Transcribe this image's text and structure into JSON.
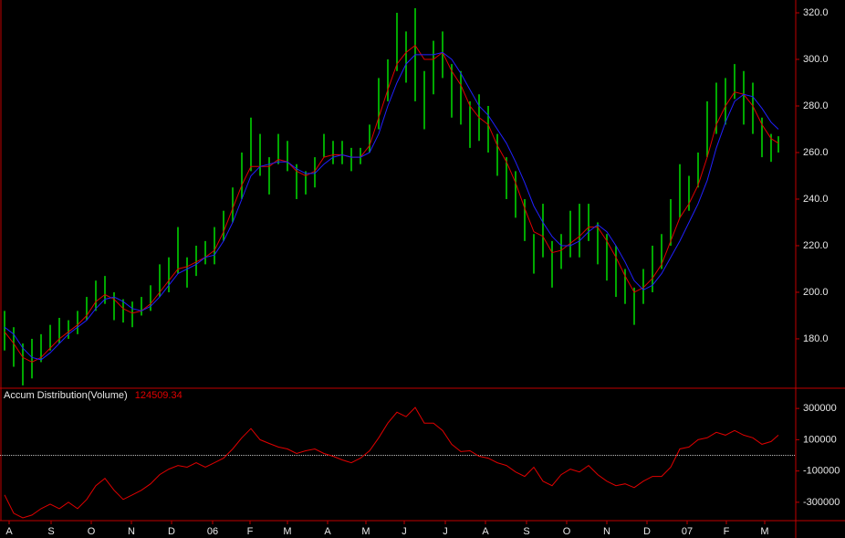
{
  "chart_data": [
    {
      "type": "ohlc",
      "bar_color": "#00e000",
      "x": [
        5,
        15,
        25,
        35,
        45,
        55,
        65,
        75,
        85,
        95,
        105,
        115,
        125,
        135,
        145,
        155,
        165,
        175,
        185,
        195,
        205,
        215,
        225,
        235,
        245,
        255,
        265,
        275,
        285,
        295,
        305,
        315,
        325,
        335,
        345,
        355,
        365,
        375,
        385,
        395,
        405,
        415,
        425,
        435,
        445,
        455,
        465,
        475,
        485,
        495,
        505,
        515,
        525,
        535,
        545,
        555,
        565,
        575,
        585,
        595,
        605,
        615,
        625,
        635,
        645,
        655,
        665,
        675,
        685,
        695,
        705,
        715,
        725,
        735,
        745,
        755,
        765,
        775,
        785,
        795,
        805,
        815,
        825,
        835,
        845,
        853
      ],
      "lows": [
        175,
        168,
        160,
        163,
        170,
        175,
        178,
        180,
        182,
        188,
        192,
        195,
        188,
        187,
        185,
        190,
        192,
        198,
        200,
        208,
        202,
        207,
        212,
        212,
        222,
        230,
        240,
        252,
        250,
        242,
        255,
        252,
        240,
        242,
        245,
        258,
        255,
        255,
        252,
        255,
        260,
        270,
        282,
        295,
        290,
        282,
        270,
        285,
        292,
        275,
        272,
        262,
        265,
        260,
        250,
        240,
        232,
        222,
        208,
        215,
        202,
        210,
        215,
        215,
        222,
        212,
        205,
        198,
        195,
        186,
        195,
        200,
        210,
        220,
        232,
        235,
        245,
        258,
        268,
        272,
        283,
        272,
        268,
        258,
        256,
        260
      ],
      "highs": [
        192,
        185,
        178,
        180,
        182,
        186,
        189,
        188,
        192,
        198,
        205,
        207,
        200,
        197,
        196,
        198,
        203,
        212,
        215,
        228,
        215,
        220,
        222,
        228,
        235,
        245,
        260,
        275,
        268,
        258,
        268,
        265,
        255,
        252,
        258,
        268,
        265,
        265,
        262,
        262,
        272,
        292,
        300,
        320,
        312,
        322,
        295,
        308,
        312,
        298,
        295,
        282,
        285,
        280,
        268,
        258,
        252,
        240,
        225,
        238,
        222,
        225,
        235,
        238,
        238,
        230,
        225,
        220,
        210,
        202,
        210,
        220,
        225,
        240,
        255,
        250,
        260,
        282,
        290,
        292,
        298,
        295,
        290,
        275,
        268,
        267
      ],
      "moving_averages": [
        {
          "color": "#e00000",
          "values": [
            183,
            178,
            172,
            170,
            172,
            176,
            180,
            183,
            186,
            190,
            196,
            199,
            197,
            193,
            191,
            192,
            195,
            200,
            205,
            210,
            211,
            213,
            215,
            218,
            226,
            236,
            246,
            254,
            254,
            254,
            257,
            256,
            252,
            250,
            252,
            258,
            259,
            259,
            258,
            258,
            263,
            275,
            287,
            298,
            303,
            306,
            300,
            300,
            303,
            295,
            289,
            280,
            275,
            272,
            263,
            256,
            247,
            236,
            226,
            224,
            217,
            218,
            221,
            224,
            228,
            228,
            222,
            215,
            207,
            200,
            202,
            206,
            212,
            222,
            232,
            238,
            246,
            258,
            272,
            280,
            286,
            285,
            280,
            272,
            266,
            264
          ]
        },
        {
          "color": "#2020ff",
          "values": [
            185,
            182,
            176,
            172,
            171,
            174,
            178,
            182,
            185,
            188,
            193,
            197,
            198,
            196,
            193,
            192,
            194,
            198,
            203,
            208,
            210,
            212,
            215,
            216,
            222,
            230,
            240,
            250,
            254,
            255,
            256,
            256,
            253,
            251,
            251,
            255,
            258,
            259,
            258,
            258,
            260,
            268,
            280,
            290,
            298,
            302,
            302,
            302,
            303,
            300,
            294,
            287,
            280,
            276,
            270,
            264,
            256,
            247,
            237,
            230,
            224,
            220,
            220,
            222,
            226,
            229,
            226,
            220,
            213,
            205,
            201,
            203,
            208,
            215,
            222,
            230,
            238,
            248,
            262,
            273,
            282,
            285,
            284,
            279,
            273,
            270
          ]
        }
      ],
      "xlim": [
        0,
        872
      ],
      "ylim": [
        158.8,
        325.5
      ],
      "yticks": [
        {
          "value": 180,
          "label": "180.0"
        },
        {
          "value": 200,
          "label": "200.0"
        },
        {
          "value": 220,
          "label": "220.0"
        },
        {
          "value": 240,
          "label": "240.0"
        },
        {
          "value": 260,
          "label": "260.0"
        },
        {
          "value": 280,
          "label": "280.0"
        },
        {
          "value": 300,
          "label": "300.0"
        },
        {
          "value": 320,
          "label": "320.0"
        }
      ]
    },
    {
      "type": "line",
      "title": "Accum Distribution(Volume)",
      "last_value": 124509.34,
      "hline": 0,
      "x": [
        5,
        15,
        25,
        35,
        45,
        55,
        65,
        75,
        85,
        95,
        105,
        115,
        125,
        135,
        145,
        155,
        165,
        175,
        185,
        195,
        205,
        215,
        225,
        235,
        245,
        255,
        265,
        275,
        285,
        295,
        305,
        315,
        325,
        335,
        345,
        355,
        365,
        375,
        385,
        395,
        405,
        415,
        425,
        435,
        445,
        455,
        465,
        475,
        485,
        495,
        505,
        515,
        525,
        535,
        545,
        555,
        565,
        575,
        585,
        595,
        605,
        615,
        625,
        635,
        645,
        655,
        665,
        675,
        685,
        695,
        705,
        715,
        725,
        735,
        745,
        755,
        765,
        775,
        785,
        795,
        805,
        815,
        825,
        835,
        845,
        853
      ],
      "series": [
        {
          "color": "#e00000",
          "values": [
            -253000,
            -370000,
            -400000,
            -382000,
            -341000,
            -312000,
            -341000,
            -300000,
            -341000,
            -282000,
            -194000,
            -147000,
            -223000,
            -282000,
            -253000,
            -223000,
            -182000,
            -123000,
            -88000,
            -65000,
            -76000,
            -47000,
            -76000,
            -47000,
            -18000,
            41000,
            112000,
            171000,
            100000,
            76000,
            53000,
            41000,
            12000,
            29000,
            41000,
            12000,
            -6000,
            -29000,
            -47000,
            -18000,
            29000,
            112000,
            206000,
            276000,
            247000,
            306000,
            206000,
            206000,
            159000,
            71000,
            24000,
            29000,
            -6000,
            -18000,
            -47000,
            -65000,
            -106000,
            -135000,
            -76000,
            -165000,
            -194000,
            -123000,
            -88000,
            -106000,
            -65000,
            -123000,
            -165000,
            -194000,
            -182000,
            -206000,
            -165000,
            -135000,
            -135000,
            -76000,
            41000,
            53000,
            100000,
            112000,
            147000,
            129000,
            159000,
            129000,
            112000,
            71000,
            88000,
            129000
          ]
        }
      ],
      "xlim": [
        0,
        872
      ],
      "ylim": [
        -417600,
        429400
      ],
      "yticks": [
        -300000,
        -100000,
        100000,
        300000
      ],
      "xticks": [
        {
          "value": 10,
          "label": "A"
        },
        {
          "value": 56,
          "label": "S"
        },
        {
          "value": 100,
          "label": "O"
        },
        {
          "value": 144,
          "label": "N"
        },
        {
          "value": 188,
          "label": "D"
        },
        {
          "value": 233,
          "label": "06"
        },
        {
          "value": 274,
          "label": "F"
        },
        {
          "value": 315,
          "label": "M"
        },
        {
          "value": 359,
          "label": "A"
        },
        {
          "value": 401,
          "label": "M"
        },
        {
          "value": 443,
          "label": "J"
        },
        {
          "value": 488,
          "label": "J"
        },
        {
          "value": 532,
          "label": "A"
        },
        {
          "value": 577,
          "label": "S"
        },
        {
          "value": 621,
          "label": "O"
        },
        {
          "value": 665,
          "label": "N"
        },
        {
          "value": 709,
          "label": "D"
        },
        {
          "value": 753,
          "label": "07"
        },
        {
          "value": 796,
          "label": "F"
        },
        {
          "value": 838,
          "label": "M"
        }
      ]
    }
  ]
}
